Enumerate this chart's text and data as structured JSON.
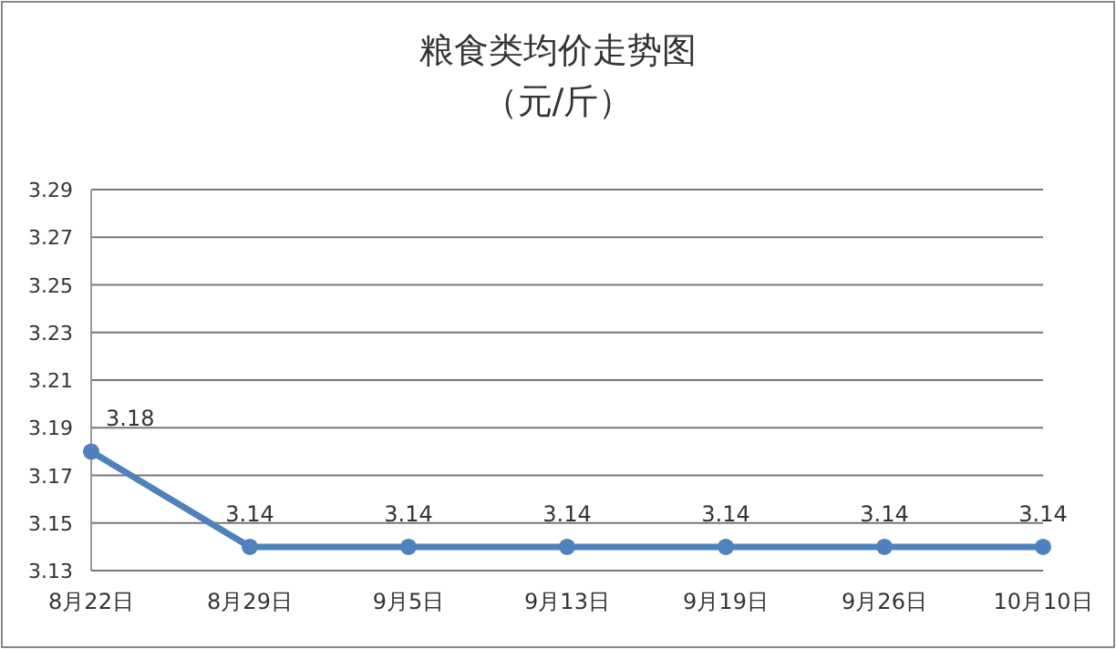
{
  "chart_data": {
    "type": "line",
    "title": "粮食类均价走势图",
    "subtitle": "（元/斤）",
    "categories": [
      "8月22日",
      "8月29日",
      "9月5日",
      "9月13日",
      "9月19日",
      "9月26日",
      "10月10日"
    ],
    "series": [
      {
        "color": "#4f81bd",
        "values": [
          3.18,
          3.14,
          3.14,
          3.14,
          3.14,
          3.14,
          3.14
        ]
      }
    ],
    "ylim": [
      3.13,
      3.29
    ],
    "yticks": [
      3.13,
      3.15,
      3.17,
      3.19,
      3.21,
      3.23,
      3.25,
      3.27,
      3.29
    ],
    "grid": "y",
    "marker": "circle",
    "line_style": "solid",
    "data_labels": true
  }
}
